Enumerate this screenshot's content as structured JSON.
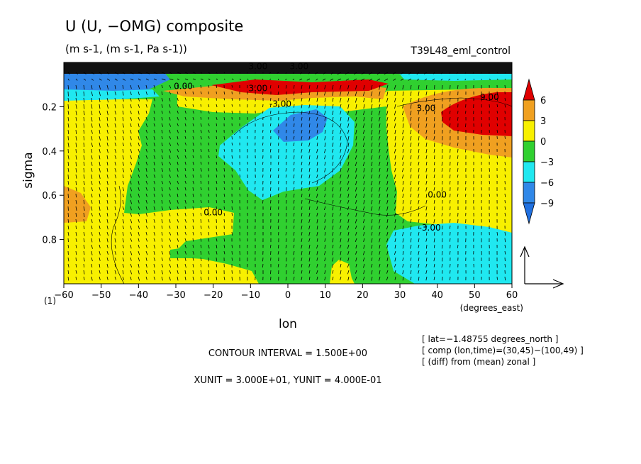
{
  "chart_data": {
    "type": "contour",
    "title": "U (U, −OMG) composite",
    "units_line": "(m s-1, (m s-1, Pa s-1))",
    "run_label": "T39L48_eml_control",
    "xlabel": "lon",
    "xunit_label": "(degrees_east)",
    "ylabel": "sigma",
    "ylabel_extra": "(1)",
    "xlim": [
      -60,
      60
    ],
    "ylim": [
      1.0,
      0.0
    ],
    "x_ticks": [
      "−60",
      "−50",
      "−40",
      "−30",
      "−20",
      "−10",
      "0",
      "10",
      "20",
      "30",
      "40",
      "50",
      "60"
    ],
    "x_tick_values": [
      -60,
      -50,
      -40,
      -30,
      -20,
      -10,
      0,
      10,
      20,
      30,
      40,
      50,
      60
    ],
    "y_ticks": [
      "0.2",
      "0.4",
      "0.6",
      "0.8"
    ],
    "y_tick_values": [
      0.2,
      0.4,
      0.6,
      0.8
    ],
    "colorbar": {
      "labels": [
        "6",
        "3",
        "0",
        "−3",
        "−6",
        "−9"
      ],
      "levels": [
        6,
        3,
        0,
        -3,
        -6,
        -9
      ],
      "colors": [
        "#e00000",
        "#f0a020",
        "#f8f000",
        "#30d030",
        "#20e8f0",
        "#3088e8",
        "#2070e0"
      ]
    },
    "contour_labels": [
      {
        "text": "0.00",
        "lon": -28,
        "sigma": 0.12
      },
      {
        "text": "0.00",
        "lon": -20,
        "sigma": 0.69
      },
      {
        "text": "0.00",
        "lon": 40,
        "sigma": 0.61
      },
      {
        "text": "3.00",
        "lon": -8,
        "sigma": 0.13
      },
      {
        "text": "-3.00",
        "lon": -2,
        "sigma": 0.2
      },
      {
        "text": "-3.00",
        "lon": 38,
        "sigma": 0.76
      },
      {
        "text": "3.00",
        "lon": 37,
        "sigma": 0.22
      },
      {
        "text": "9.00",
        "lon": 54,
        "sigma": 0.17
      },
      {
        "text": "3.00",
        "lon": -8,
        "sigma": 0.03
      },
      {
        "text": "3.00",
        "lon": 3,
        "sigma": 0.03
      }
    ],
    "vector_scale": {
      "xunit": "3.000E+01",
      "yunit": "4.000E-01"
    },
    "contour_interval": "CONTOUR INTERVAL = 1.500E+00",
    "unit_line": "XUNIT = 3.000E+01, YUNIT = 4.000E-01",
    "info_lines": [
      "[ lat=−1.48755 degrees_north ]",
      "[ comp (lon,time)=(30,45)−(100,49) ]",
      "[ (diff) from (mean) zonal ]"
    ]
  }
}
